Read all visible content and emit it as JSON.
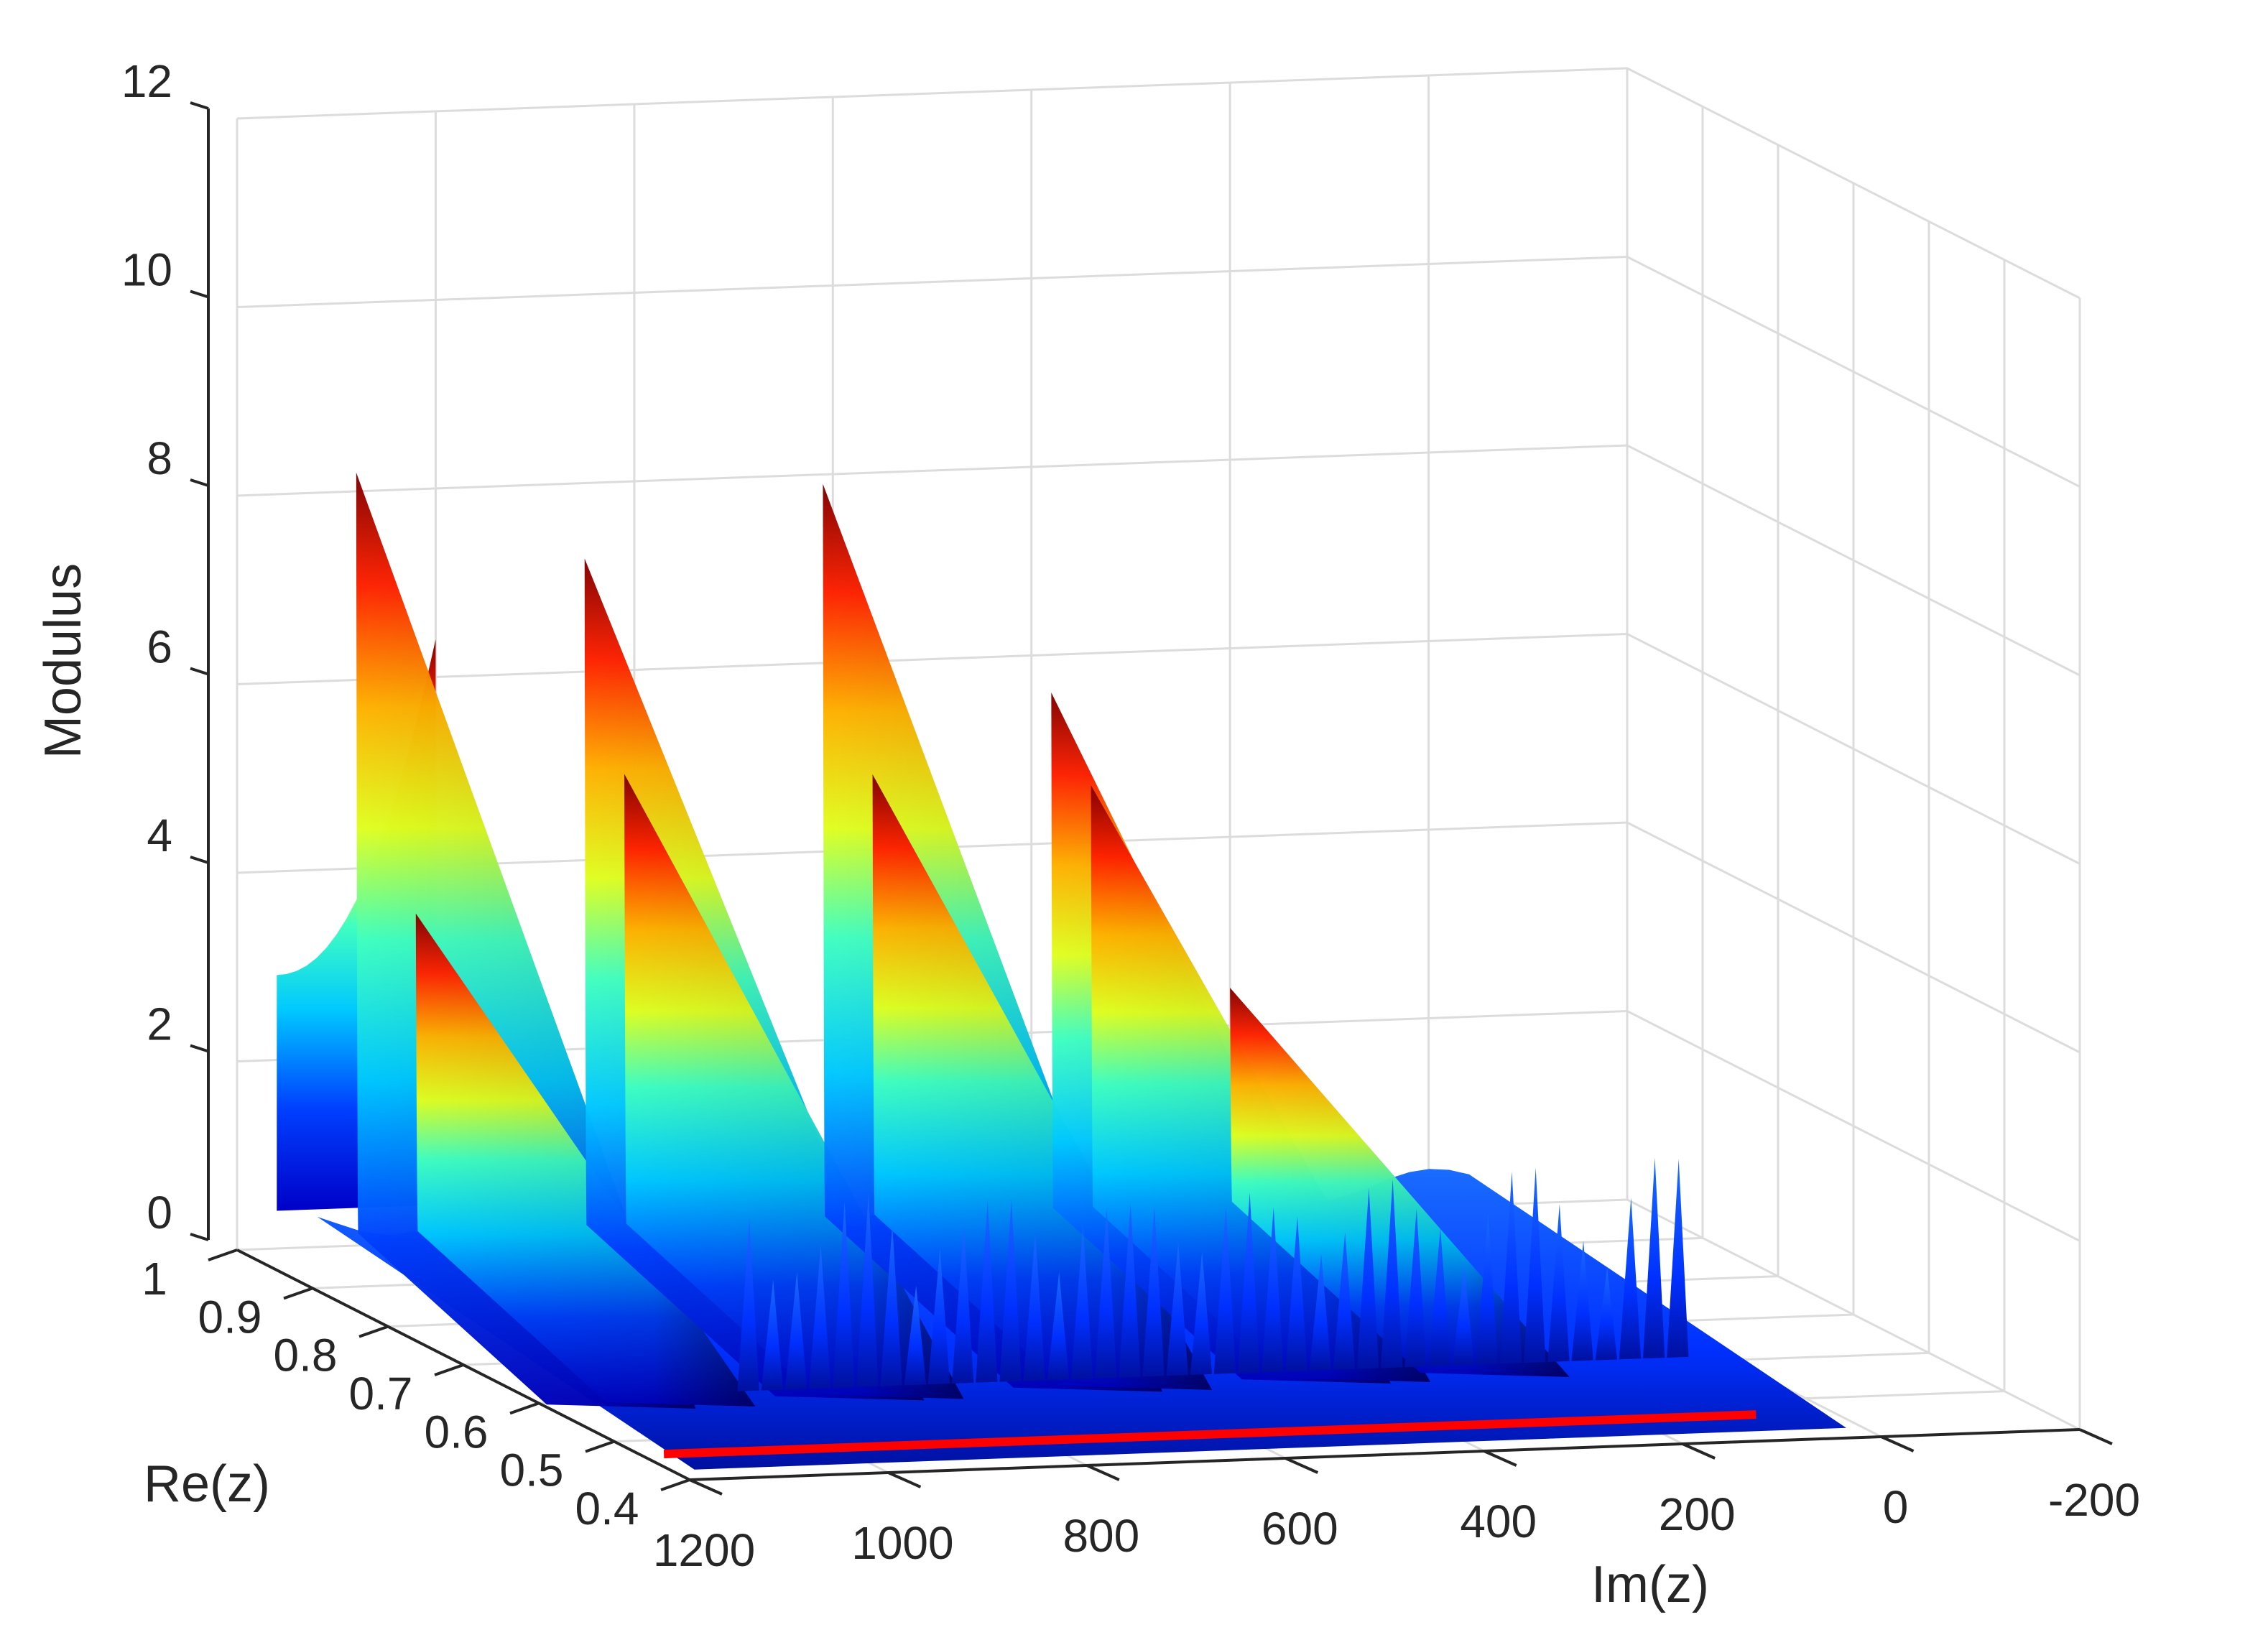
{
  "chart_data": {
    "type": "surface3d",
    "xlabel": "Im(z)",
    "ylabel": "Re(z)",
    "zlabel": "Modulus",
    "x_ticks": [
      "1200",
      "1000",
      "800",
      "600",
      "400",
      "200",
      "0",
      "-200"
    ],
    "y_ticks": [
      "1",
      "0.9",
      "0.8",
      "0.7",
      "0.6",
      "0.5",
      "0.4"
    ],
    "z_ticks": [
      "0",
      "2",
      "4",
      "6",
      "8",
      "10",
      "12"
    ],
    "xlim": [
      -200,
      1200
    ],
    "ylim": [
      0.4,
      1
    ],
    "zlim": [
      0,
      12
    ],
    "grid": true,
    "colormap": "jet",
    "red_line": {
      "color": "#ff0000",
      "re": 0.5,
      "im_range": [
        50,
        1150
      ],
      "modulus": 0
    },
    "peaks": [
      {
        "im": 1080,
        "modulus": 8.2
      },
      {
        "im": 1020,
        "modulus": 3.5
      },
      {
        "im": 850,
        "modulus": 7.2
      },
      {
        "im": 810,
        "modulus": 4.9
      },
      {
        "im": 610,
        "modulus": 7.9
      },
      {
        "im": 560,
        "modulus": 4.8
      },
      {
        "im": 380,
        "modulus": 5.6
      },
      {
        "im": 340,
        "modulus": 4.6
      },
      {
        "im": 200,
        "modulus": 2.4
      }
    ]
  }
}
